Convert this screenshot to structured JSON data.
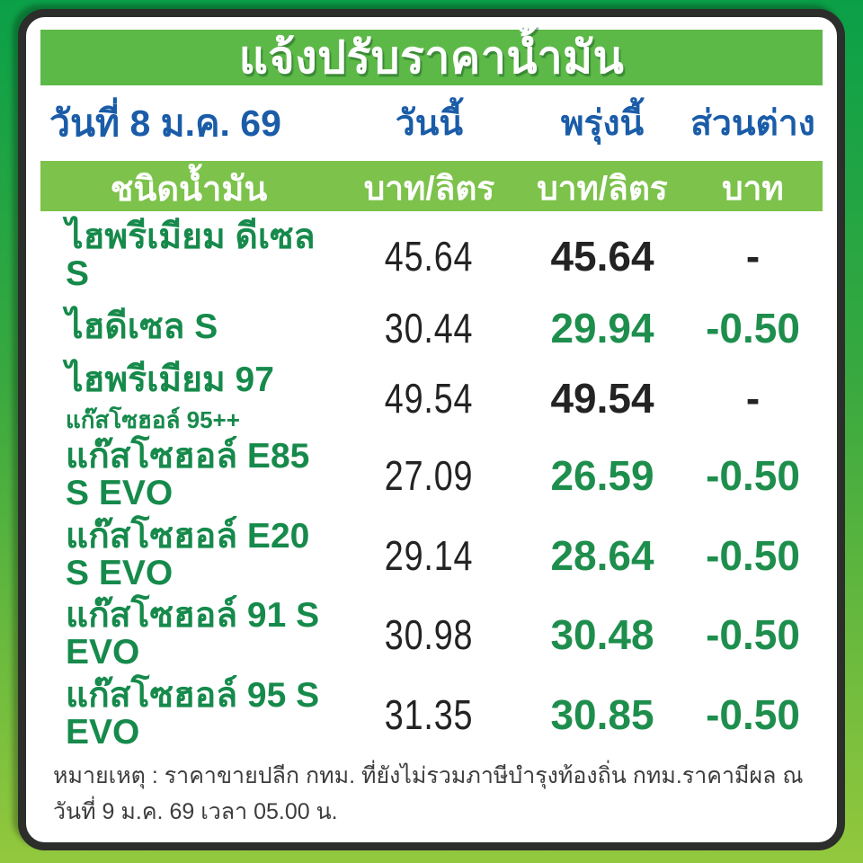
{
  "title": "แจ้งปรับราคาน้ำมัน",
  "date_row": {
    "date": "วันที่ 8 ม.ค. 69",
    "today_label": "วันนี้",
    "tomorrow_label": "พรุ่งนี้",
    "diff_label": "ส่วนต่าง"
  },
  "table_header": {
    "fuel_type": "ชนิดน้ำมัน",
    "today_unit": "บาท/ลิตร",
    "tomorrow_unit": "บาท/ลิตร",
    "diff_unit": "บาท"
  },
  "rows": [
    {
      "name": "ไฮพรีเมียม ดีเซล S",
      "today": "45.64",
      "tomorrow": "45.64",
      "diff": "-",
      "changed": false
    },
    {
      "name": "ไฮดีเซล S",
      "today": "30.44",
      "tomorrow": "29.94",
      "diff": "-0.50",
      "changed": true
    },
    {
      "name": "ไฮพรีเมียม 97",
      "subtitle": "แก๊สโซฮอล์ 95++",
      "today": "49.54",
      "tomorrow": "49.54",
      "diff": "-",
      "changed": false
    },
    {
      "name": "แก๊สโซฮอล์ E85 S EVO",
      "today": "27.09",
      "tomorrow": "26.59",
      "diff": "-0.50",
      "changed": true
    },
    {
      "name": "แก๊สโซฮอล์ E20 S EVO",
      "today": "29.14",
      "tomorrow": "28.64",
      "diff": "-0.50",
      "changed": true
    },
    {
      "name": "แก๊สโซฮอล์ 91 S EVO",
      "today": "30.98",
      "tomorrow": "30.48",
      "diff": "-0.50",
      "changed": true
    },
    {
      "name": "แก๊สโซฮอล์ 95 S EVO",
      "today": "31.35",
      "tomorrow": "30.85",
      "diff": "-0.50",
      "changed": true
    }
  ],
  "footnote": "หมายเหตุ :  ราคาขายปลีก กทม. ที่ยังไม่รวมภาษีบำรุงท้องถิ่น  กทม.ราคามีผล ณ วันที่ 9 ม.ค. 69 เวลา 05.00 น.",
  "colors": {
    "bg_top": "#0ba048",
    "bg_mid": "#3aa93f",
    "bg_bottom": "#93c83d",
    "border_dark": "#2c2e2b",
    "banner_green": "#5cb947",
    "header_green": "#7cc24b",
    "fuel_green": "#168a4b",
    "changed_green": "#1e8e4d",
    "blue": "#1a5ca8",
    "ink": "#232323",
    "note_ink": "#3d3d3d"
  }
}
